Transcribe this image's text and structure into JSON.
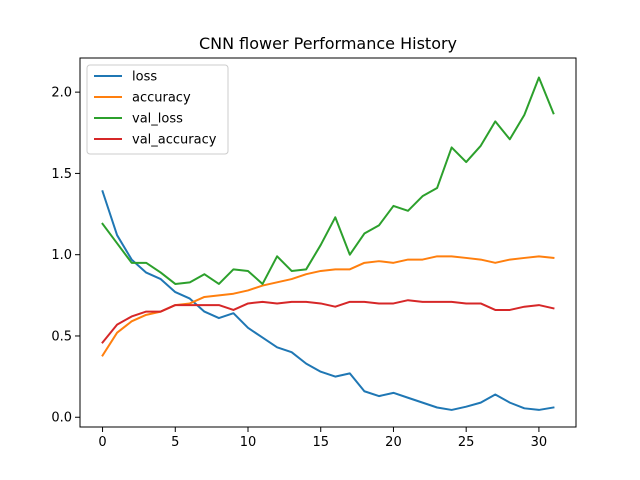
{
  "chart_data": {
    "type": "line",
    "title": "CNN flower Performance History",
    "xlabel": "",
    "ylabel": "",
    "xlim": [
      -1.55,
      32.55
    ],
    "ylim": [
      -0.06,
      2.21
    ],
    "x_ticks": [
      0,
      5,
      10,
      15,
      20,
      25,
      30
    ],
    "y_ticks": [
      0.0,
      0.5,
      1.0,
      1.5,
      2.0
    ],
    "y_tick_labels": [
      "0.0",
      "0.5",
      "1.0",
      "1.5",
      "2.0"
    ],
    "grid": false,
    "legend_position": "upper-left",
    "x": [
      0,
      1,
      2,
      3,
      4,
      5,
      6,
      7,
      8,
      9,
      10,
      11,
      12,
      13,
      14,
      15,
      16,
      17,
      18,
      19,
      20,
      21,
      22,
      23,
      24,
      25,
      26,
      27,
      28,
      29,
      30,
      31
    ],
    "series": [
      {
        "name": "loss",
        "color": "#1f77b4",
        "values": [
          1.39,
          1.12,
          0.97,
          0.89,
          0.85,
          0.77,
          0.73,
          0.65,
          0.61,
          0.64,
          0.55,
          0.49,
          0.43,
          0.4,
          0.33,
          0.28,
          0.25,
          0.27,
          0.16,
          0.13,
          0.15,
          0.12,
          0.09,
          0.06,
          0.045,
          0.065,
          0.09,
          0.14,
          0.09,
          0.055,
          0.045,
          0.06
        ]
      },
      {
        "name": "accuracy",
        "color": "#ff7f0e",
        "values": [
          0.38,
          0.52,
          0.59,
          0.63,
          0.65,
          0.69,
          0.7,
          0.74,
          0.75,
          0.76,
          0.78,
          0.81,
          0.83,
          0.85,
          0.88,
          0.9,
          0.91,
          0.91,
          0.95,
          0.96,
          0.95,
          0.97,
          0.97,
          0.99,
          0.99,
          0.98,
          0.97,
          0.95,
          0.97,
          0.98,
          0.99,
          0.98
        ]
      },
      {
        "name": "val_loss",
        "color": "#2ca02c",
        "values": [
          1.19,
          1.07,
          0.95,
          0.95,
          0.89,
          0.82,
          0.83,
          0.88,
          0.82,
          0.91,
          0.9,
          0.82,
          0.99,
          0.9,
          0.91,
          1.06,
          1.23,
          1.0,
          1.13,
          1.18,
          1.3,
          1.27,
          1.36,
          1.41,
          1.66,
          1.57,
          1.67,
          1.82,
          1.71,
          1.86,
          2.09,
          1.87
        ]
      },
      {
        "name": "val_accuracy",
        "color": "#d62728",
        "values": [
          0.46,
          0.57,
          0.62,
          0.65,
          0.65,
          0.69,
          0.69,
          0.69,
          0.69,
          0.66,
          0.7,
          0.71,
          0.7,
          0.71,
          0.71,
          0.7,
          0.68,
          0.71,
          0.71,
          0.7,
          0.7,
          0.72,
          0.71,
          0.71,
          0.71,
          0.7,
          0.7,
          0.66,
          0.66,
          0.68,
          0.69,
          0.67
        ]
      }
    ]
  }
}
